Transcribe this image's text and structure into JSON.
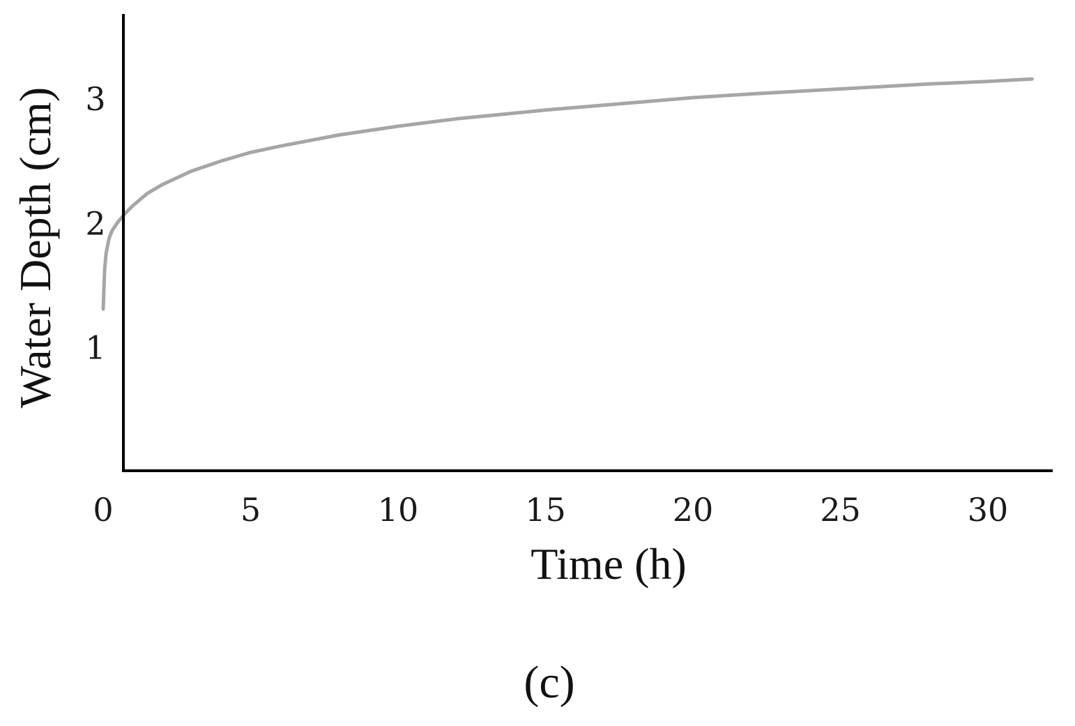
{
  "chart_data": {
    "type": "line",
    "xlabel": "Time (h)",
    "ylabel": "Water Depth (cm)",
    "panel_label": "(c)",
    "x_ticks": [
      "0",
      "5",
      "10",
      "15",
      "20",
      "25",
      "30"
    ],
    "y_ticks": [
      "1",
      "2",
      "3"
    ],
    "xlim": [
      0,
      33
    ],
    "ylim": [
      0,
      3.6
    ],
    "grid": false,
    "series": [
      {
        "color": "#a6a6a6",
        "x": [
          0,
          0.05,
          0.1,
          0.2,
          0.3,
          0.5,
          0.75,
          1,
          1.5,
          2,
          3,
          4,
          5,
          6,
          8,
          10,
          12,
          15,
          18,
          20,
          22,
          25,
          28,
          30,
          31.5
        ],
        "values": [
          1.3,
          1.62,
          1.75,
          1.87,
          1.93,
          2.0,
          2.07,
          2.13,
          2.23,
          2.3,
          2.41,
          2.49,
          2.56,
          2.61,
          2.7,
          2.77,
          2.83,
          2.9,
          2.96,
          3.0,
          3.03,
          3.07,
          3.11,
          3.13,
          3.15
        ]
      }
    ]
  }
}
